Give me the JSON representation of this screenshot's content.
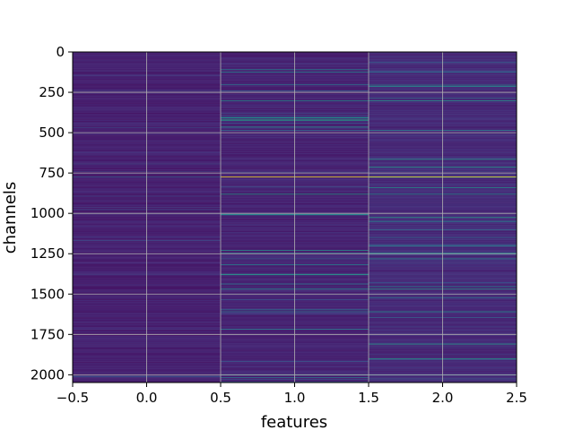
{
  "chart_data": {
    "type": "heatmap",
    "title": "",
    "xlabel": "features",
    "ylabel": "channels",
    "colormap": "viridis",
    "grid": true,
    "xlim": [
      -0.5,
      2.5
    ],
    "ylim": [
      2048,
      0
    ],
    "x_ticks": [
      "−0.5",
      "0.0",
      "0.5",
      "1.0",
      "1.5",
      "2.0",
      "2.5"
    ],
    "x_tick_values": [
      -0.5,
      0.0,
      0.5,
      1.0,
      1.5,
      2.0,
      2.5
    ],
    "y_ticks": [
      "0",
      "250",
      "500",
      "750",
      "1000",
      "1250",
      "1500",
      "1750",
      "2000"
    ],
    "y_tick_values": [
      0,
      250,
      500,
      750,
      1000,
      1250,
      1500,
      1750,
      2000
    ],
    "columns": [
      0,
      1,
      2
    ],
    "rows": 2048,
    "column_base_level": [
      0.06,
      0.07,
      0.09
    ],
    "notable_rows": [
      {
        "channel": 775,
        "column_values": [
          0.3,
          1.0,
          1.0
        ]
      },
      {
        "channel": 740,
        "column_values": [
          0.18,
          0.16,
          0.2
        ]
      },
      {
        "channel": 125,
        "column_values": [
          0.08,
          0.45,
          0.4
        ]
      },
      {
        "channel": 300,
        "column_values": [
          0.07,
          0.5,
          0.55
        ]
      },
      {
        "channel": 485,
        "column_values": [
          0.08,
          0.35,
          0.45
        ]
      },
      {
        "channel": 880,
        "column_values": [
          0.08,
          0.55,
          0.5
        ]
      },
      {
        "channel": 1245,
        "column_values": [
          0.1,
          0.4,
          0.5
        ]
      },
      {
        "channel": 1280,
        "column_values": [
          0.09,
          0.3,
          0.45
        ]
      },
      {
        "channel": 1470,
        "column_values": [
          0.07,
          0.5,
          0.55
        ]
      },
      {
        "channel": 1610,
        "column_values": [
          0.07,
          0.4,
          0.5
        ]
      },
      {
        "channel": 2000,
        "column_values": [
          0.08,
          0.45,
          0.4
        ]
      }
    ]
  }
}
